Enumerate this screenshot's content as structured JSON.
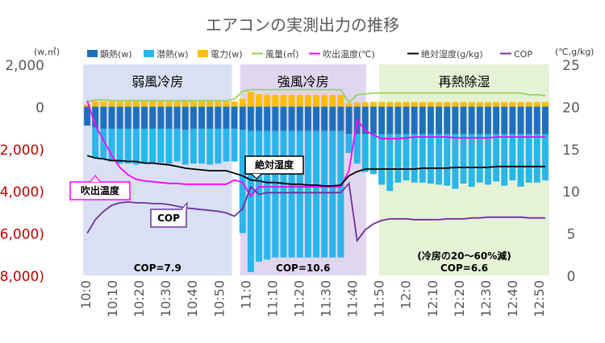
{
  "chart_data": {
    "type": "bar",
    "title": "エアコンの実測出力の推移",
    "y_left_unit": "(w,㎥)",
    "y_right_unit": "(℃,g/kg)",
    "ylim_left": [
      -8000,
      2000
    ],
    "ylim_right": [
      0,
      25
    ],
    "y_left_ticks": [
      {
        "value": 2000,
        "label": "2,000"
      },
      {
        "value": 0,
        "label": "0"
      },
      {
        "value": -2000,
        "label": "(2,000)"
      },
      {
        "value": -4000,
        "label": "(4,000)"
      },
      {
        "value": -6000,
        "label": "(6,000)"
      },
      {
        "value": -8000,
        "label": "(8,000)"
      }
    ],
    "y_right_ticks": [
      25,
      20,
      15,
      10,
      5,
      0
    ],
    "x_labels": [
      "10:0",
      "10:10",
      "10:20",
      "10:30",
      "10:40",
      "10:50",
      "11:0",
      "11:10",
      "11:20",
      "11:30",
      "11:40",
      "11:50",
      "12:0",
      "12:10",
      "12:20",
      "12:30",
      "12:40",
      "12:50"
    ],
    "regions": [
      {
        "label": "弱風冷房",
        "cop": "COP=7.9",
        "note": "",
        "color": "#d9e0f3"
      },
      {
        "label": "強風冷房",
        "cop": "COP=10.6",
        "note": "",
        "color": "#e1d6ef"
      },
      {
        "label": "再熱除湿",
        "cop": "COP=6.6",
        "note": "(冷房の20～60%減)",
        "color": "#e6f2d6"
      }
    ],
    "callouts": [
      {
        "text": "絶対湿度",
        "series": "absolute_humidity"
      },
      {
        "text": "吹出温度",
        "series": "outlet_temp"
      },
      {
        "text": "COP",
        "series": "cop"
      }
    ],
    "legend": {
      "sensible": "顕熱(w)",
      "latent": "潜熱(w)",
      "power": "電力(w)",
      "airflow": "風量(㎥)",
      "outlet_temp": "吹出温度(℃)",
      "absolute_humidity": "絶対湿度(g/kg)",
      "cop": "COP"
    },
    "colors": {
      "sensible": "#1f6fbf",
      "latent": "#29b6ea",
      "power": "#ffbf00",
      "airflow": "#92d050",
      "outlet_temp": "#ff00ff",
      "absolute_humidity": "#000000",
      "cop": "#7030a0",
      "negative_tick": "#c00000"
    },
    "series": {
      "sensible": [
        -900,
        -1000,
        -1050,
        -1050,
        -1050,
        -1050,
        -1050,
        -1050,
        -1050,
        -1050,
        -1050,
        -1050,
        -1100,
        -1050,
        -1050,
        -1050,
        -1050,
        -1050,
        -1050,
        -1100,
        -1150,
        -1150,
        -1150,
        -1150,
        -1150,
        -1150,
        -1150,
        -1150,
        -1150,
        -1150,
        -1150,
        -1150,
        -1300,
        -1300,
        -1300,
        -1300,
        -1300,
        -1300,
        -1300,
        -1300,
        -1300,
        -1300,
        -1300,
        -1300,
        -1300,
        -1300,
        -1300,
        -1300,
        -1300,
        -1300,
        -1300,
        -1300,
        -1300,
        -1300,
        -1300,
        -1300,
        -1300
      ],
      "latent": [
        0,
        -1450,
        -1450,
        -1550,
        -1650,
        -1650,
        -1700,
        -1650,
        -1650,
        -1600,
        -1650,
        -1550,
        -1650,
        -1650,
        -1650,
        -1700,
        -1650,
        -1550,
        -1550,
        -4900,
        -6700,
        -6200,
        -6100,
        -6000,
        -6000,
        -6000,
        -6000,
        -6000,
        -6000,
        -6000,
        -6000,
        -6000,
        -900,
        -1400,
        -1800,
        -1900,
        -2400,
        -2700,
        -2300,
        -2200,
        -2300,
        -2300,
        -2350,
        -2400,
        -2450,
        -2600,
        -2350,
        -2500,
        -2300,
        -2400,
        -2250,
        -2450,
        -2200,
        -2500,
        -2300,
        -2300,
        -2200
      ],
      "power": [
        100,
        260,
        250,
        240,
        240,
        240,
        240,
        240,
        240,
        240,
        240,
        240,
        250,
        240,
        240,
        240,
        240,
        240,
        250,
        380,
        700,
        580,
        570,
        560,
        560,
        560,
        560,
        560,
        560,
        560,
        560,
        560,
        150,
        200,
        210,
        220,
        220,
        220,
        220,
        220,
        220,
        220,
        220,
        220,
        220,
        220,
        220,
        220,
        220,
        220,
        220,
        220,
        220,
        220,
        220,
        220,
        220
      ],
      "airflow": [
        20.6,
        20.8,
        20.8,
        20.7,
        20.7,
        20.7,
        20.7,
        20.7,
        20.7,
        20.7,
        20.7,
        20.7,
        20.7,
        20.7,
        20.7,
        20.7,
        20.7,
        20.7,
        20.9,
        21.8,
        22.0,
        22.0,
        22.0,
        22.0,
        22.0,
        22.0,
        22.0,
        22.0,
        22.0,
        22.0,
        22.0,
        22.0,
        20.5,
        21.4,
        21.5,
        21.6,
        21.6,
        21.6,
        21.6,
        21.6,
        21.6,
        21.6,
        21.6,
        21.6,
        21.6,
        21.6,
        21.6,
        21.6,
        21.6,
        21.6,
        21.6,
        21.6,
        21.6,
        21.6,
        21.4,
        21.4,
        21.3
      ],
      "outlet_temp": [
        20.7,
        17.8,
        16.0,
        14.2,
        12.8,
        11.9,
        11.4,
        11.2,
        11.1,
        11.0,
        10.9,
        10.9,
        10.8,
        10.8,
        10.8,
        10.8,
        10.8,
        10.8,
        11.3,
        11.0,
        9.4,
        10.5,
        10.5,
        10.5,
        10.5,
        10.5,
        10.5,
        10.5,
        10.5,
        10.5,
        10.5,
        10.5,
        12.4,
        18.4,
        17.2,
        16.6,
        16.2,
        16.2,
        16.2,
        16.3,
        16.4,
        16.4,
        16.4,
        16.4,
        16.4,
        16.3,
        16.3,
        16.3,
        16.3,
        16.3,
        16.4,
        16.4,
        16.4,
        16.4,
        16.4,
        16.4,
        16.4
      ],
      "absolute_humidity": [
        14.2,
        13.9,
        13.8,
        13.6,
        13.6,
        13.5,
        13.5,
        13.3,
        13.3,
        13.2,
        13.1,
        12.9,
        12.7,
        12.6,
        12.5,
        12.4,
        12.4,
        12.4,
        12.1,
        11.8,
        11.3,
        11.2,
        11.0,
        11.0,
        10.9,
        10.8,
        10.8,
        10.7,
        10.7,
        10.6,
        10.6,
        10.7,
        11.8,
        12.3,
        12.6,
        12.6,
        12.6,
        12.6,
        12.6,
        12.6,
        12.6,
        12.7,
        12.7,
        12.7,
        12.7,
        12.8,
        12.8,
        12.8,
        12.8,
        12.8,
        12.9,
        12.9,
        12.9,
        12.9,
        12.9,
        12.9,
        12.9
      ],
      "cop": [
        5.0,
        6.6,
        7.6,
        8.3,
        8.6,
        8.7,
        8.6,
        8.6,
        8.5,
        8.5,
        8.4,
        8.2,
        8.0,
        7.9,
        7.8,
        7.7,
        7.6,
        7.4,
        7.0,
        7.9,
        10.5,
        9.6,
        9.8,
        9.8,
        9.8,
        9.8,
        9.8,
        9.8,
        9.8,
        9.8,
        9.8,
        9.8,
        10.9,
        4.1,
        5.4,
        6.1,
        6.5,
        6.7,
        6.7,
        6.7,
        6.6,
        6.6,
        6.6,
        6.6,
        6.7,
        6.7,
        6.7,
        6.8,
        6.8,
        6.9,
        6.9,
        6.9,
        6.9,
        6.9,
        6.8,
        6.8,
        6.8
      ]
    }
  }
}
